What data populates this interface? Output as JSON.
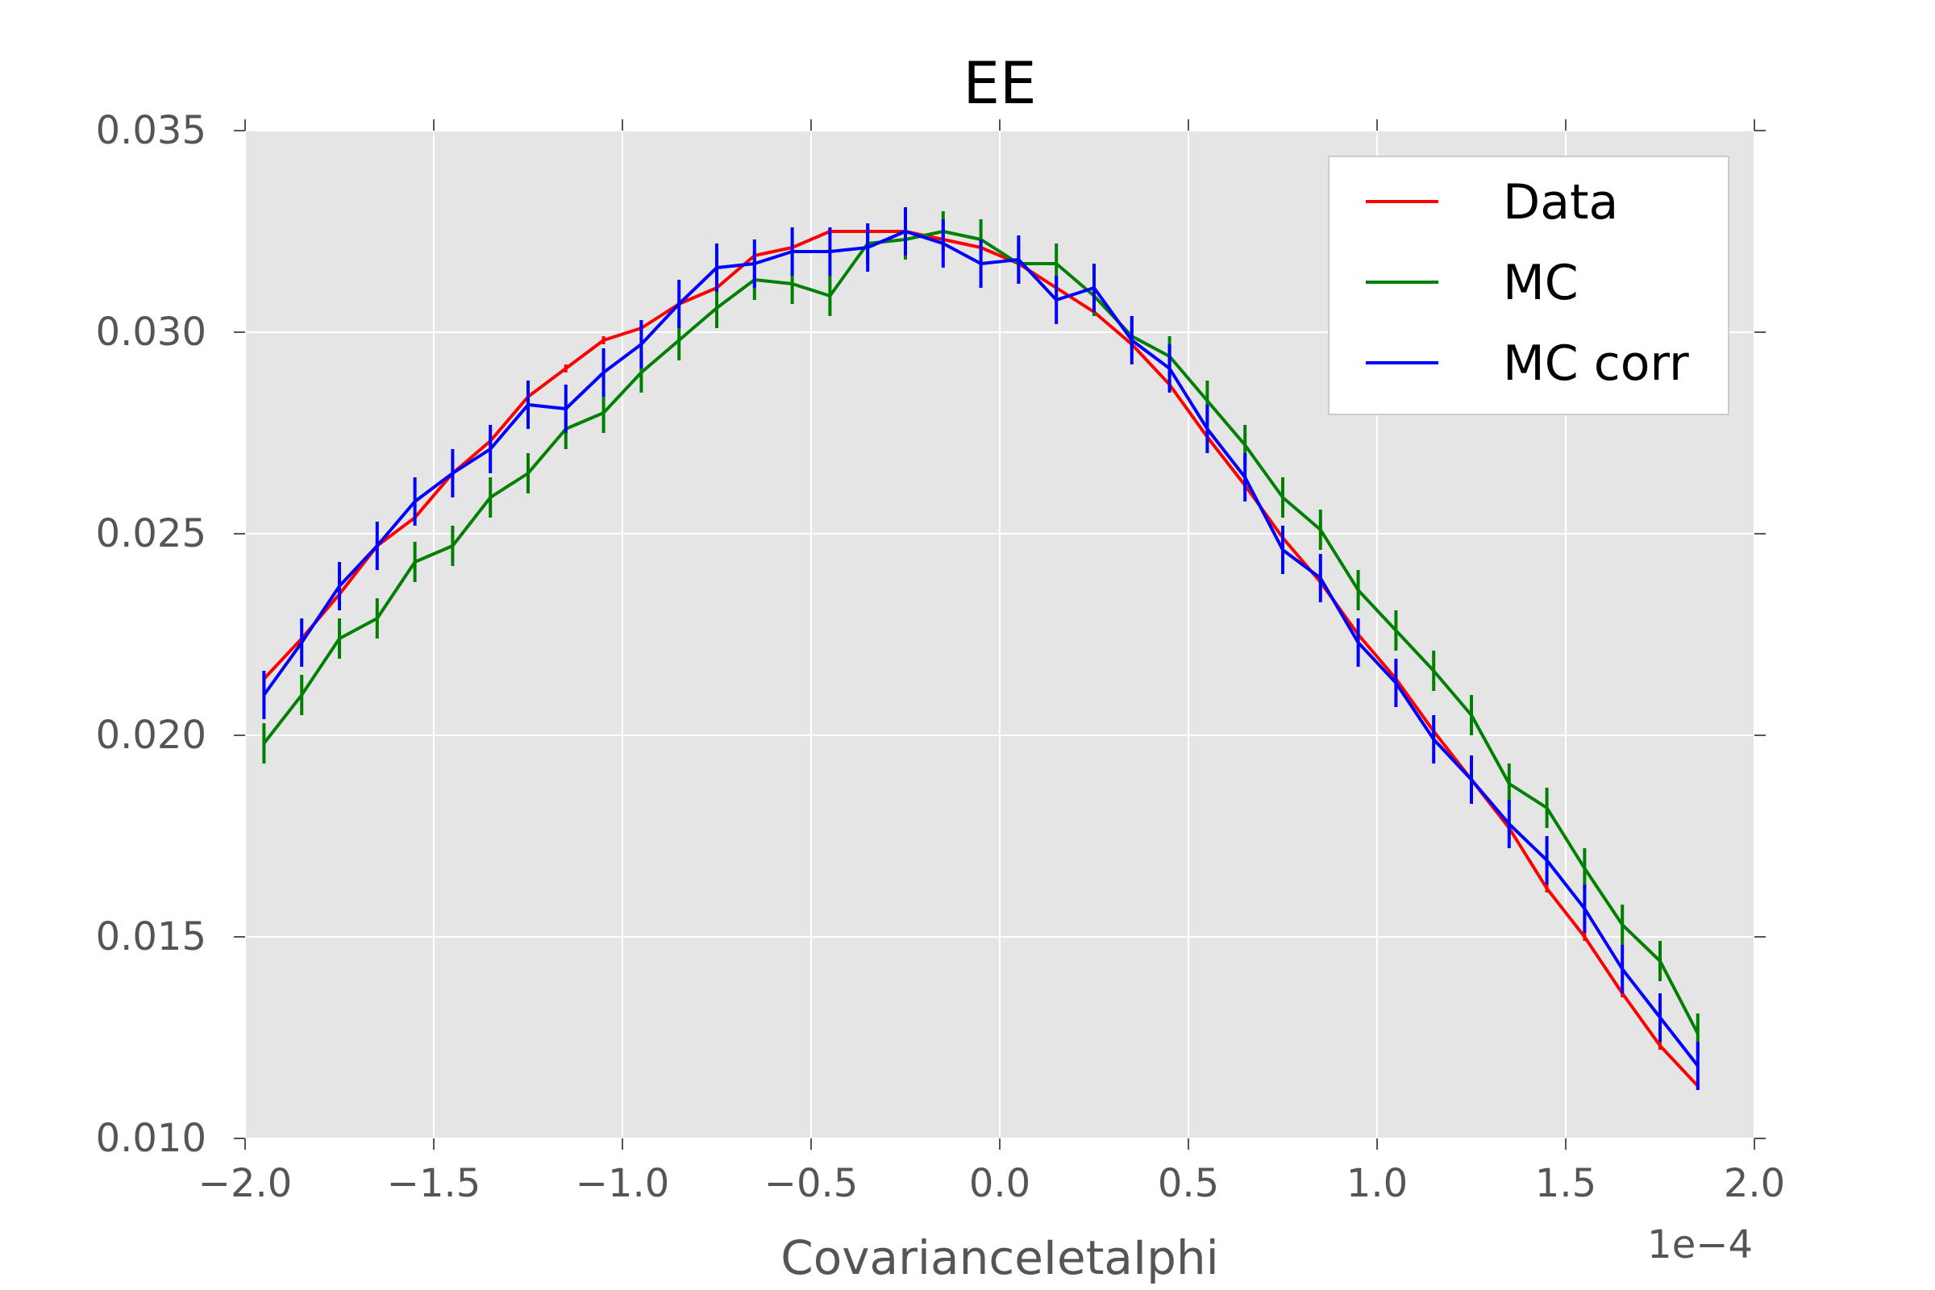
{
  "chart_data": {
    "type": "line",
    "title": "EE",
    "xlabel": "CovarianceIetaIphi",
    "ylabel": "",
    "x_offset_text": "1e−4",
    "xlim": [
      -2.0,
      2.0
    ],
    "ylim": [
      0.01,
      0.035
    ],
    "xticks": [
      -2.0,
      -1.5,
      -1.0,
      -0.5,
      0.0,
      0.5,
      1.0,
      1.5,
      2.0
    ],
    "xtick_labels": [
      "−2.0",
      "−1.5",
      "−1.0",
      "−0.5",
      "0.0",
      "0.5",
      "1.0",
      "1.5",
      "2.0"
    ],
    "yticks": [
      0.01,
      0.015,
      0.02,
      0.025,
      0.03,
      0.035
    ],
    "ytick_labels": [
      "0.010",
      "0.015",
      "0.020",
      "0.025",
      "0.030",
      "0.035"
    ],
    "grid": true,
    "legend_position": "top-right",
    "x": [
      -1.95,
      -1.85,
      -1.75,
      -1.65,
      -1.55,
      -1.45,
      -1.35,
      -1.25,
      -1.15,
      -1.05,
      -0.95,
      -0.85,
      -0.75,
      -0.65,
      -0.55,
      -0.45,
      -0.35,
      -0.25,
      -0.15,
      -0.05,
      0.05,
      0.15,
      0.25,
      0.35,
      0.45,
      0.55,
      0.65,
      0.75,
      0.85,
      0.95,
      1.05,
      1.15,
      1.25,
      1.35,
      1.45,
      1.55,
      1.65,
      1.75,
      1.85
    ],
    "series": [
      {
        "name": "Data",
        "color": "#ff0000",
        "values": [
          0.0214,
          0.0224,
          0.0235,
          0.0247,
          0.0254,
          0.0265,
          0.0273,
          0.0284,
          0.0291,
          0.0298,
          0.0301,
          0.0307,
          0.0311,
          0.0319,
          0.0321,
          0.0325,
          0.0325,
          0.0325,
          0.0323,
          0.0321,
          0.0317,
          0.0311,
          0.0305,
          0.0297,
          0.0287,
          0.0274,
          0.0262,
          0.0249,
          0.0238,
          0.0225,
          0.0214,
          0.0201,
          0.0189,
          0.0177,
          0.0162,
          0.015,
          0.0136,
          0.0123,
          0.0113
        ],
        "errors": [
          0.0001,
          0.0001,
          0.0001,
          0.0001,
          0.0001,
          0.0001,
          0.0001,
          0.0001,
          0.0001,
          0.0001,
          0.0001,
          0.0001,
          0.0001,
          0.0001,
          0.0001,
          0.0001,
          0.0001,
          0.0001,
          0.0001,
          0.0001,
          0.0001,
          0.0001,
          0.0001,
          0.0001,
          0.0001,
          0.0001,
          0.0001,
          0.0001,
          0.0001,
          0.0001,
          0.0001,
          0.0001,
          0.0001,
          0.0001,
          0.0001,
          0.0001,
          0.0001,
          0.0001,
          0.0001
        ]
      },
      {
        "name": "MC",
        "color": "#008000",
        "values": [
          0.0198,
          0.021,
          0.0224,
          0.0229,
          0.0243,
          0.0247,
          0.0259,
          0.0265,
          0.0276,
          0.028,
          0.029,
          0.0298,
          0.0306,
          0.0313,
          0.0312,
          0.0309,
          0.0322,
          0.0323,
          0.0325,
          0.0323,
          0.0317,
          0.0317,
          0.0309,
          0.0299,
          0.0294,
          0.0283,
          0.0272,
          0.0259,
          0.0251,
          0.0236,
          0.0226,
          0.0216,
          0.0205,
          0.0188,
          0.0182,
          0.0167,
          0.0153,
          0.0144,
          0.0126
        ],
        "errors": [
          0.0005,
          0.0005,
          0.0005,
          0.0005,
          0.0005,
          0.0005,
          0.0005,
          0.0005,
          0.0005,
          0.0005,
          0.0005,
          0.0005,
          0.0005,
          0.0005,
          0.0005,
          0.0005,
          0.0005,
          0.0005,
          0.0005,
          0.0005,
          0.0005,
          0.0005,
          0.0005,
          0.0005,
          0.0005,
          0.0005,
          0.0005,
          0.0005,
          0.0005,
          0.0005,
          0.0005,
          0.0005,
          0.0005,
          0.0005,
          0.0005,
          0.0005,
          0.0005,
          0.0005,
          0.0005
        ]
      },
      {
        "name": "MC corr",
        "color": "#0000ff",
        "values": [
          0.021,
          0.0223,
          0.0237,
          0.0247,
          0.0258,
          0.0265,
          0.0271,
          0.0282,
          0.0281,
          0.029,
          0.0297,
          0.0307,
          0.0316,
          0.0317,
          0.032,
          0.032,
          0.0321,
          0.0325,
          0.0322,
          0.0317,
          0.0318,
          0.0308,
          0.0311,
          0.0298,
          0.0291,
          0.0276,
          0.0264,
          0.0246,
          0.0239,
          0.0223,
          0.0213,
          0.0199,
          0.0189,
          0.0178,
          0.0169,
          0.0157,
          0.0142,
          0.013,
          0.0118
        ],
        "errors": [
          0.0006,
          0.0006,
          0.0006,
          0.0006,
          0.0006,
          0.0006,
          0.0006,
          0.0006,
          0.0006,
          0.0006,
          0.0006,
          0.0006,
          0.0006,
          0.0006,
          0.0006,
          0.0006,
          0.0006,
          0.0006,
          0.0006,
          0.0006,
          0.0006,
          0.0006,
          0.0006,
          0.0006,
          0.0006,
          0.0006,
          0.0006,
          0.0006,
          0.0006,
          0.0006,
          0.0006,
          0.0006,
          0.0006,
          0.0006,
          0.0006,
          0.0006,
          0.0006,
          0.0006,
          0.0006
        ]
      }
    ],
    "plot_background": "#e5e5e5",
    "grid_color": "#ffffff"
  }
}
